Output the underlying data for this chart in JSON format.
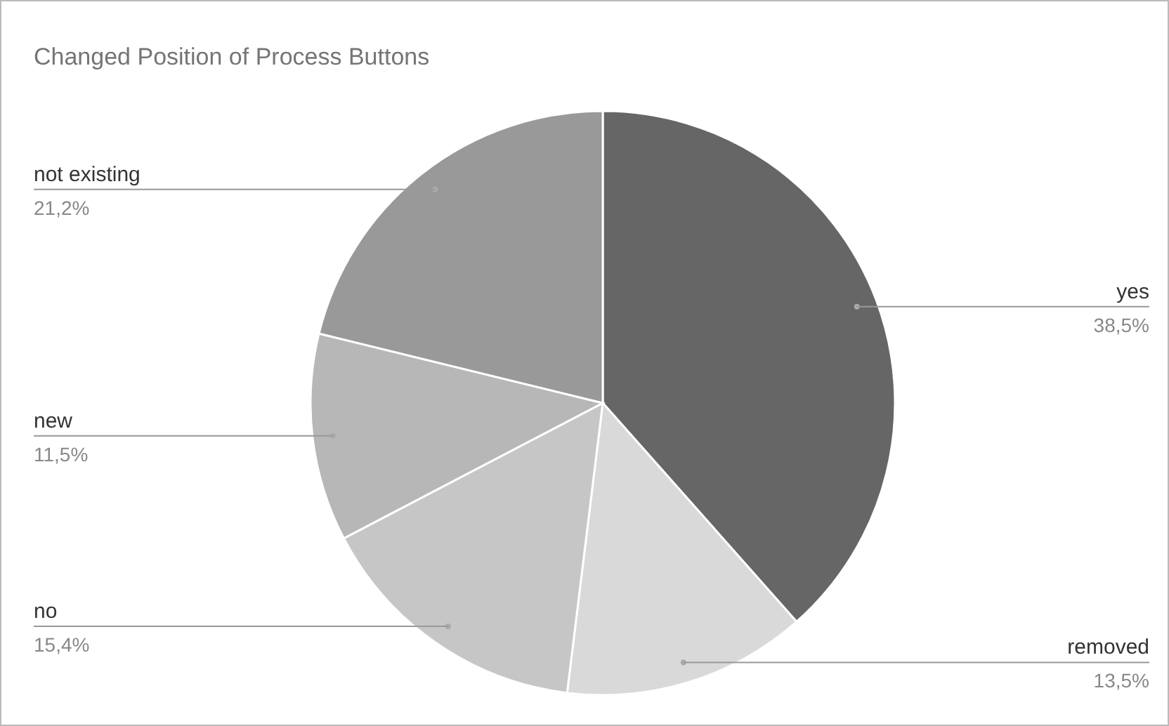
{
  "chart_data": {
    "type": "pie",
    "title": "Changed Position of Process Buttons",
    "categories": [
      "yes",
      "removed",
      "no",
      "new",
      "not existing"
    ],
    "values": [
      38.5,
      13.5,
      15.4,
      11.5,
      21.2
    ],
    "value_labels": [
      "38,5%",
      "13,5%",
      "15,4%",
      "11,5%",
      "21,2%"
    ],
    "colors": [
      "#666666",
      "#d9d9d9",
      "#c6c6c6",
      "#b7b7b7",
      "#999999"
    ]
  }
}
